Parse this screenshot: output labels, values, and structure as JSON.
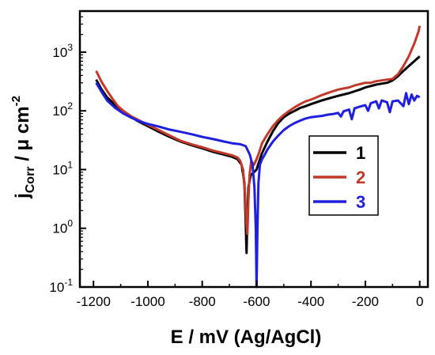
{
  "chart_data": {
    "type": "line",
    "xlabel": "E / mV (Ag/AgCl)",
    "ylabel": {
      "main": "j",
      "sub": "Corr",
      "rest": " / μ cm",
      "sup": "-2"
    },
    "xlim": [
      -1250,
      30
    ],
    "ylim": [
      0.1,
      5000
    ],
    "yscale": "log",
    "x_ticks": [
      -1200,
      -1000,
      -800,
      -600,
      -400,
      -200,
      0
    ],
    "y_ticks": [
      {
        "value": 0.1,
        "base": "10",
        "exp": "-1"
      },
      {
        "value": 1,
        "base": "10",
        "exp": "0"
      },
      {
        "value": 10,
        "base": "10",
        "exp": "1"
      },
      {
        "value": 100,
        "base": "10",
        "exp": "2"
      },
      {
        "value": 1000,
        "base": "10",
        "exp": "3"
      }
    ],
    "legend_position": "right-middle",
    "series": [
      {
        "name": "1",
        "color": "#000000",
        "points": [
          [
            -1190,
            340
          ],
          [
            -1170,
            230
          ],
          [
            -1150,
            170
          ],
          [
            -1120,
            125
          ],
          [
            -1100,
            105
          ],
          [
            -1070,
            85
          ],
          [
            -1040,
            68
          ],
          [
            -1000,
            55
          ],
          [
            -960,
            44
          ],
          [
            -920,
            36
          ],
          [
            -880,
            30
          ],
          [
            -840,
            26
          ],
          [
            -800,
            23
          ],
          [
            -760,
            20
          ],
          [
            -720,
            18
          ],
          [
            -690,
            16.5
          ],
          [
            -670,
            15
          ],
          [
            -655,
            12
          ],
          [
            -645,
            6
          ],
          [
            -640,
            1.2
          ],
          [
            -637,
            0.38
          ],
          [
            -634,
            1.5
          ],
          [
            -630,
            5
          ],
          [
            -622,
            8
          ],
          [
            -610,
            9
          ],
          [
            -600,
            10
          ],
          [
            -590,
            14
          ],
          [
            -580,
            19
          ],
          [
            -560,
            30
          ],
          [
            -540,
            45
          ],
          [
            -520,
            62
          ],
          [
            -500,
            78
          ],
          [
            -480,
            90
          ],
          [
            -460,
            100
          ],
          [
            -440,
            112
          ],
          [
            -420,
            120
          ],
          [
            -400,
            130
          ],
          [
            -380,
            140
          ],
          [
            -360,
            150
          ],
          [
            -340,
            160
          ],
          [
            -320,
            170
          ],
          [
            -300,
            180
          ],
          [
            -280,
            190
          ],
          [
            -260,
            200
          ],
          [
            -240,
            215
          ],
          [
            -220,
            230
          ],
          [
            -200,
            250
          ],
          [
            -180,
            265
          ],
          [
            -160,
            280
          ],
          [
            -140,
            290
          ],
          [
            -120,
            300
          ],
          [
            -100,
            330
          ],
          [
            -80,
            390
          ],
          [
            -60,
            480
          ],
          [
            -40,
            580
          ],
          [
            -20,
            700
          ],
          [
            0,
            850
          ]
        ]
      },
      {
        "name": "2",
        "color": "#c0392b",
        "points": [
          [
            -1190,
            480
          ],
          [
            -1170,
            310
          ],
          [
            -1150,
            220
          ],
          [
            -1130,
            160
          ],
          [
            -1110,
            120
          ],
          [
            -1090,
            100
          ],
          [
            -1060,
            80
          ],
          [
            -1030,
            68
          ],
          [
            -1000,
            58
          ],
          [
            -960,
            47
          ],
          [
            -920,
            38
          ],
          [
            -880,
            31
          ],
          [
            -840,
            27
          ],
          [
            -800,
            24
          ],
          [
            -760,
            21
          ],
          [
            -720,
            19
          ],
          [
            -690,
            17.5
          ],
          [
            -670,
            16
          ],
          [
            -660,
            14
          ],
          [
            -650,
            10
          ],
          [
            -643,
            4
          ],
          [
            -638,
            1.3
          ],
          [
            -634,
            0.8
          ],
          [
            -630,
            3
          ],
          [
            -626,
            8
          ],
          [
            -620,
            14
          ],
          [
            -610,
            12
          ],
          [
            -600,
            15
          ],
          [
            -590,
            20
          ],
          [
            -580,
            28
          ],
          [
            -560,
            40
          ],
          [
            -540,
            55
          ],
          [
            -520,
            70
          ],
          [
            -500,
            85
          ],
          [
            -480,
            100
          ],
          [
            -460,
            115
          ],
          [
            -440,
            130
          ],
          [
            -420,
            145
          ],
          [
            -400,
            155
          ],
          [
            -380,
            170
          ],
          [
            -360,
            185
          ],
          [
            -340,
            200
          ],
          [
            -320,
            215
          ],
          [
            -300,
            230
          ],
          [
            -280,
            240
          ],
          [
            -260,
            250
          ],
          [
            -240,
            270
          ],
          [
            -220,
            285
          ],
          [
            -200,
            300
          ],
          [
            -180,
            300
          ],
          [
            -160,
            320
          ],
          [
            -140,
            330
          ],
          [
            -120,
            340
          ],
          [
            -100,
            350
          ],
          [
            -80,
            420
          ],
          [
            -60,
            580
          ],
          [
            -40,
            850
          ],
          [
            -20,
            1400
          ],
          [
            -5,
            2200
          ],
          [
            0,
            2800
          ]
        ]
      },
      {
        "name": "3",
        "color": "#1f1fe0",
        "points": [
          [
            -1190,
            300
          ],
          [
            -1170,
            210
          ],
          [
            -1150,
            150
          ],
          [
            -1120,
            112
          ],
          [
            -1090,
            90
          ],
          [
            -1060,
            76
          ],
          [
            -1030,
            66
          ],
          [
            -1000,
            60
          ],
          [
            -960,
            54
          ],
          [
            -920,
            48
          ],
          [
            -880,
            44
          ],
          [
            -840,
            40
          ],
          [
            -800,
            36
          ],
          [
            -760,
            33
          ],
          [
            -720,
            30
          ],
          [
            -690,
            28
          ],
          [
            -660,
            27
          ],
          [
            -640,
            25
          ],
          [
            -625,
            18
          ],
          [
            -615,
            12
          ],
          [
            -608,
            5
          ],
          [
            -603,
            1
          ],
          [
            -600,
            0.1
          ],
          [
            -597,
            1
          ],
          [
            -593,
            6
          ],
          [
            -588,
            12
          ],
          [
            -580,
            15
          ],
          [
            -570,
            18
          ],
          [
            -560,
            22
          ],
          [
            -540,
            30
          ],
          [
            -520,
            38
          ],
          [
            -500,
            47
          ],
          [
            -480,
            55
          ],
          [
            -460,
            62
          ],
          [
            -440,
            68
          ],
          [
            -420,
            74
          ],
          [
            -400,
            78
          ],
          [
            -380,
            80
          ],
          [
            -360,
            82
          ],
          [
            -340,
            86
          ],
          [
            -320,
            88
          ],
          [
            -300,
            92
          ],
          [
            -290,
            80
          ],
          [
            -280,
            98
          ],
          [
            -260,
            105
          ],
          [
            -250,
            72
          ],
          [
            -240,
            110
          ],
          [
            -220,
            118
          ],
          [
            -200,
            125
          ],
          [
            -190,
            100
          ],
          [
            -180,
            135
          ],
          [
            -160,
            145
          ],
          [
            -150,
            110
          ],
          [
            -140,
            150
          ],
          [
            -120,
            140
          ],
          [
            -110,
            95
          ],
          [
            -100,
            145
          ],
          [
            -80,
            150
          ],
          [
            -60,
            120
          ],
          [
            -50,
            200
          ],
          [
            -40,
            130
          ],
          [
            -30,
            190
          ],
          [
            -20,
            150
          ],
          [
            -10,
            180
          ],
          [
            0,
            170
          ]
        ]
      }
    ]
  }
}
